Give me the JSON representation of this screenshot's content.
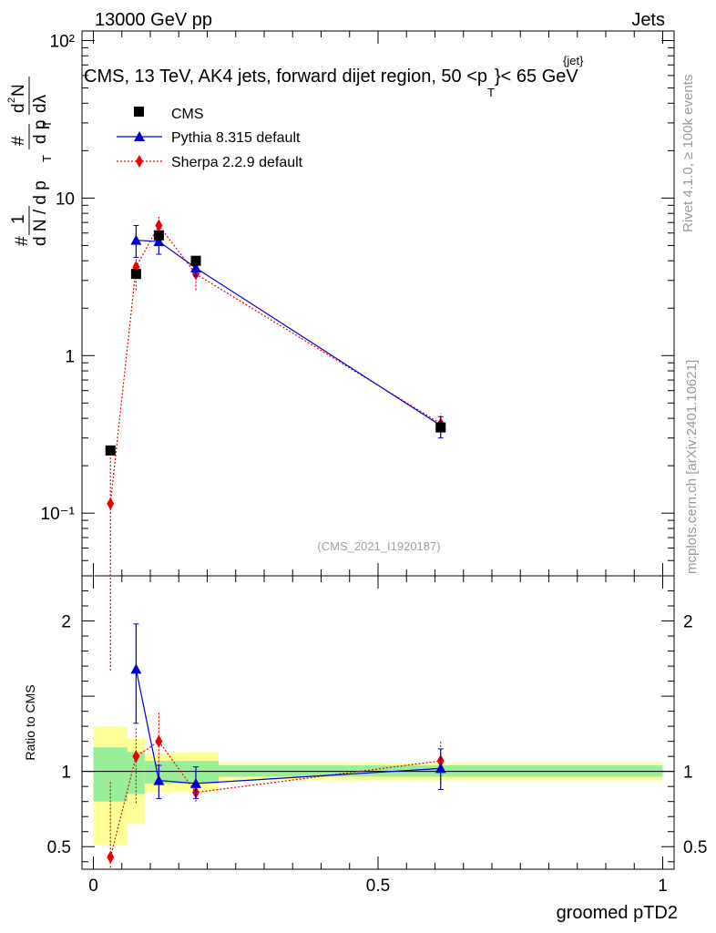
{
  "header": {
    "energy_label": "13000 GeV pp",
    "category_label": "Jets",
    "title_main": "CMS, 13 TeV, AK4 jets, forward dijet region, 50 <p",
    "title_sup": "{jet}",
    "title_sub": "T",
    "title_end": "}< 65 GeV",
    "analysis_id": "(CMS_2021_I1920187)",
    "rivet_label": "Rivet 4.1.0, ≥ 100k events",
    "mcplots_label": "mcplots.cern.ch [arXiv:2401.10621]"
  },
  "chart_data": [
    {
      "type": "scatter",
      "panel": "main",
      "yscale": "log",
      "xlim": [
        -0.02,
        1.02
      ],
      "ylim": [
        0.04,
        115
      ],
      "xlabel": "groomed pTD2",
      "ylabel_parts": [
        "1",
        "N",
        "d N / d p",
        "T",
        "d",
        "N",
        "d p",
        "T",
        "dλ",
        "2"
      ],
      "ytick_labels": [
        "10⁻¹",
        "1",
        "10",
        "10²"
      ],
      "legend": [
        {
          "name": "CMS",
          "marker": "square",
          "color": "#000000"
        },
        {
          "name": "Pythia 8.315 default",
          "marker": "triangle",
          "color": "#0000cc"
        },
        {
          "name": "Sherpa 2.2.9 default",
          "marker": "diamond",
          "color": "#ee0000"
        }
      ],
      "series": [
        {
          "name": "CMS",
          "color": "#000000",
          "x": [
            0.03,
            0.075,
            0.115,
            0.18,
            0.61
          ],
          "y": [
            0.25,
            3.3,
            5.8,
            4.0,
            0.35
          ]
        },
        {
          "name": "Pythia 8.315 default",
          "color": "#0000cc",
          "x": [
            0.075,
            0.115,
            0.18,
            0.61
          ],
          "y": [
            5.4,
            5.3,
            3.6,
            0.36
          ],
          "err_lo": [
            4.2,
            4.4,
            3.2,
            0.3
          ],
          "err_hi": [
            6.7,
            6.1,
            4.1,
            0.41
          ]
        },
        {
          "name": "Sherpa 2.2.9 default",
          "color": "#ee0000",
          "x": [
            0.03,
            0.075,
            0.115,
            0.18,
            0.61
          ],
          "y": [
            0.115,
            3.65,
            6.7,
            3.3,
            0.37
          ],
          "err_lo": [
            0.01,
            2.6,
            5.7,
            2.6,
            0.31
          ],
          "err_hi": [
            0.26,
            4.4,
            7.6,
            3.9,
            0.43
          ]
        }
      ]
    },
    {
      "type": "scatter",
      "panel": "ratio",
      "xlim": [
        -0.02,
        1.02
      ],
      "ylim": [
        0.35,
        2.3
      ],
      "xlabel": "groomed pTD2",
      "ylabel": "Ratio to CMS",
      "xtick_labels": [
        "0",
        "0.5",
        "1"
      ],
      "ytick_labels": [
        "0.5",
        "1",
        "2"
      ],
      "bands": [
        {
          "x0": 0.0,
          "x1": 0.06,
          "in_lo": 0.8,
          "in_hi": 1.16,
          "out_lo": 0.51,
          "out_hi": 1.3
        },
        {
          "x0": 0.06,
          "x1": 0.09,
          "in_lo": 0.85,
          "in_hi": 1.13,
          "out_lo": 0.65,
          "out_hi": 1.22
        },
        {
          "x0": 0.09,
          "x1": 0.14,
          "in_lo": 0.92,
          "in_hi": 1.07,
          "out_lo": 0.86,
          "out_hi": 1.12
        },
        {
          "x0": 0.14,
          "x1": 0.22,
          "in_lo": 0.92,
          "in_hi": 1.07,
          "out_lo": 0.86,
          "out_hi": 1.13
        },
        {
          "x0": 0.22,
          "x1": 1.0,
          "in_lo": 0.965,
          "in_hi": 1.04,
          "out_lo": 0.94,
          "out_hi": 1.055
        }
      ],
      "series": [
        {
          "name": "Pythia 8.315 default",
          "color": "#0000cc",
          "x": [
            0.075,
            0.115,
            0.18,
            0.61
          ],
          "y": [
            1.68,
            0.94,
            0.92,
            1.02
          ],
          "err_lo": [
            1.32,
            0.82,
            0.82,
            0.88
          ],
          "err_hi": [
            1.98,
            1.04,
            1.03,
            1.15
          ]
        },
        {
          "name": "Sherpa 2.2.9 default",
          "color": "#ee0000",
          "x": [
            0.03,
            0.075,
            0.115,
            0.18,
            0.61
          ],
          "y": [
            0.43,
            1.1,
            1.2,
            0.86,
            1.07
          ],
          "err_lo": [
            0.36,
            0.79,
            0.99,
            0.8,
            0.92
          ],
          "err_hi": [
            0.94,
            1.3,
            1.39,
            0.93,
            1.21
          ]
        }
      ]
    }
  ]
}
